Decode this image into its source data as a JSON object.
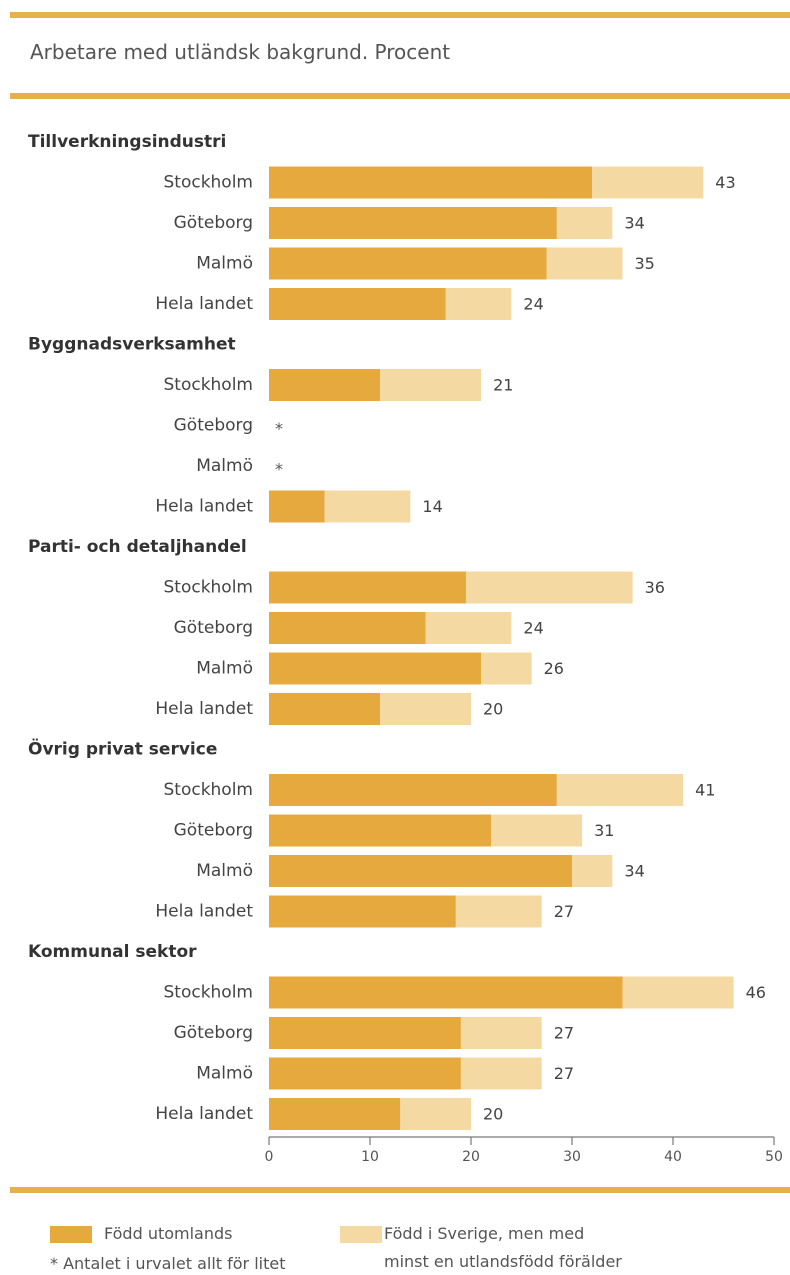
{
  "chart_data": {
    "type": "bar",
    "orientation": "horizontal",
    "stacked": true,
    "title": "Arbetare med utländsk bakgrund. Procent",
    "xlim": [
      0,
      50
    ],
    "x_ticks": [
      "0",
      "10",
      "20",
      "30",
      "40",
      "50"
    ],
    "grid": false,
    "colors": {
      "foreign": "#e5a93d",
      "parent": "#f5d9a3"
    },
    "legend": {
      "placement": "bottom",
      "foreign_label": "Född utomlands",
      "parent_label_line1": "Född i Sverige, men med",
      "parent_label_line2": "minst en utlandsfödd förälder"
    },
    "footnote": "* Antalet i urvalet allt för litet",
    "groups": [
      {
        "name": "Tillverkningsindustri",
        "rows": [
          {
            "label": "Stockholm",
            "foreign": 32,
            "parent": 11,
            "total": "43"
          },
          {
            "label": "Göteborg",
            "foreign": 28.5,
            "parent": 5.5,
            "total": "34"
          },
          {
            "label": "Malmö",
            "foreign": 27.5,
            "parent": 7.5,
            "total": "35"
          },
          {
            "label": "Hela landet",
            "foreign": 17.5,
            "parent": 6.5,
            "total": "24"
          }
        ]
      },
      {
        "name": "Byggnadsverksamhet",
        "rows": [
          {
            "label": "Stockholm",
            "foreign": 11,
            "parent": 10,
            "total": "21"
          },
          {
            "label": "Göteborg",
            "foreign": null,
            "parent": null,
            "total": "*"
          },
          {
            "label": "Malmö",
            "foreign": null,
            "parent": null,
            "total": "*"
          },
          {
            "label": "Hela landet",
            "foreign": 5.5,
            "parent": 8.5,
            "total": "14"
          }
        ]
      },
      {
        "name": "Parti- och detaljhandel",
        "rows": [
          {
            "label": "Stockholm",
            "foreign": 19.5,
            "parent": 16.5,
            "total": "36"
          },
          {
            "label": "Göteborg",
            "foreign": 15.5,
            "parent": 8.5,
            "total": "24"
          },
          {
            "label": "Malmö",
            "foreign": 21,
            "parent": 5,
            "total": "26"
          },
          {
            "label": "Hela landet",
            "foreign": 11,
            "parent": 9,
            "total": "20"
          }
        ]
      },
      {
        "name": "Övrig privat service",
        "rows": [
          {
            "label": "Stockholm",
            "foreign": 28.5,
            "parent": 12.5,
            "total": "41"
          },
          {
            "label": "Göteborg",
            "foreign": 22,
            "parent": 9,
            "total": "31"
          },
          {
            "label": "Malmö",
            "foreign": 30,
            "parent": 4,
            "total": "34"
          },
          {
            "label": "Hela landet",
            "foreign": 18.5,
            "parent": 8.5,
            "total": "27"
          }
        ]
      },
      {
        "name": "Kommunal sektor",
        "rows": [
          {
            "label": "Stockholm",
            "foreign": 35,
            "parent": 11,
            "total": "46"
          },
          {
            "label": "Göteborg",
            "foreign": 19,
            "parent": 8,
            "total": "27"
          },
          {
            "label": "Malmö",
            "foreign": 19,
            "parent": 8,
            "total": "27"
          },
          {
            "label": "Hela landet",
            "foreign": 13,
            "parent": 7,
            "total": "20"
          }
        ]
      }
    ]
  }
}
